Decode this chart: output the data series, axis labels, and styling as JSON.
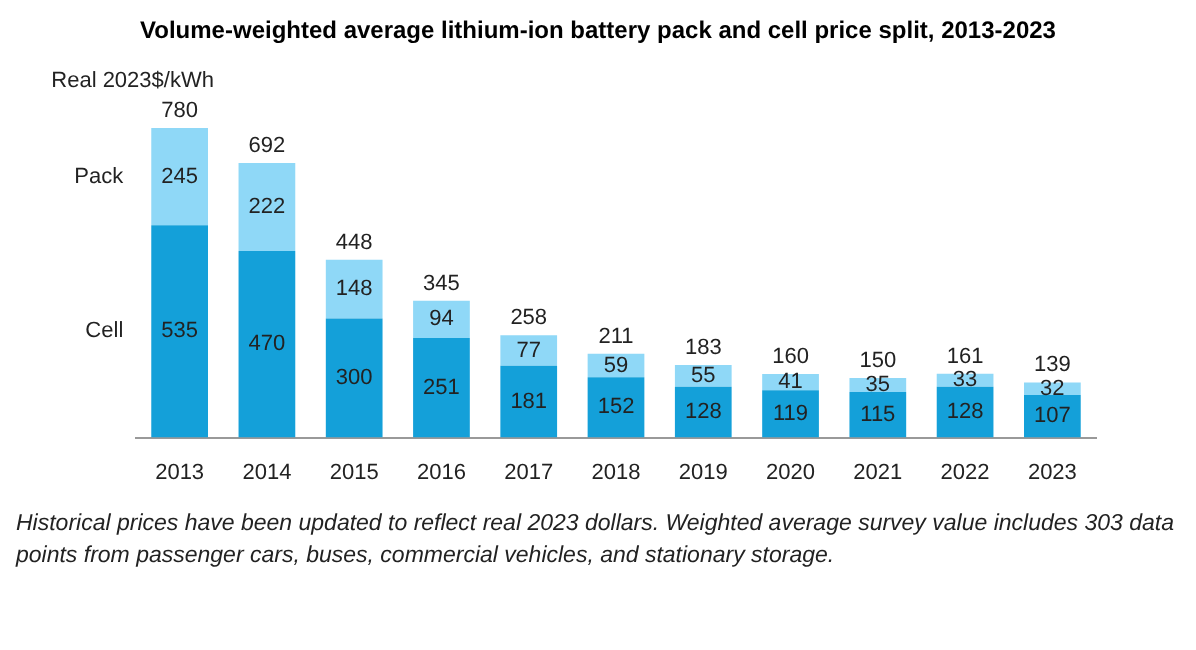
{
  "chart_data": {
    "type": "bar",
    "title": "Volume-weighted average lithium-ion battery pack and cell price split, 2013-2023",
    "ylabel": "Real 2023$/kWh",
    "categories": [
      "2013",
      "2014",
      "2015",
      "2016",
      "2017",
      "2018",
      "2019",
      "2020",
      "2021",
      "2022",
      "2023"
    ],
    "stacked": true,
    "series": [
      {
        "name": "Cell",
        "color": "#14a0d9",
        "values": [
          535,
          470,
          300,
          251,
          181,
          152,
          128,
          119,
          115,
          128,
          107
        ]
      },
      {
        "name": "Pack",
        "color": "#8fd8f7",
        "values": [
          245,
          222,
          148,
          94,
          77,
          59,
          55,
          41,
          35,
          33,
          32
        ]
      }
    ],
    "totals": [
      "780",
      "692",
      "448",
      "345",
      "258",
      "211",
      "183",
      "160",
      "150",
      "161",
      "139"
    ],
    "data_labels": true,
    "legend": false,
    "grid": false,
    "annotations": [
      "Historical prices have been updated to reflect real 2023 dollars. Weighted average survey value includes 303 data points from passenger cars, buses, commercial vehicles, and stationary storage."
    ]
  }
}
